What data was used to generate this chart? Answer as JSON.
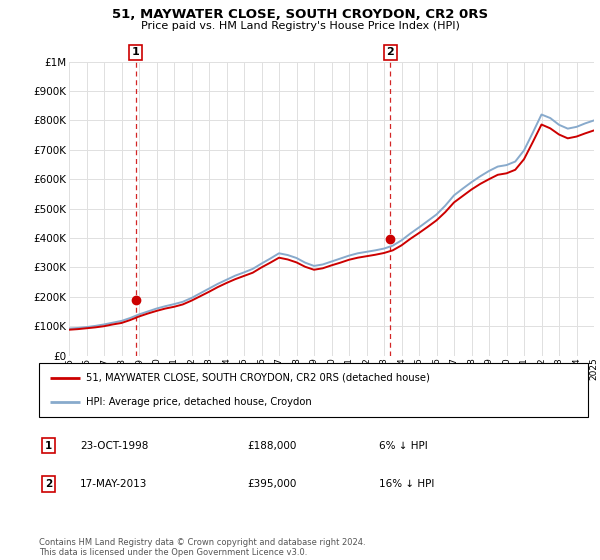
{
  "title": "51, MAYWATER CLOSE, SOUTH CROYDON, CR2 0RS",
  "subtitle": "Price paid vs. HM Land Registry's House Price Index (HPI)",
  "legend_line1": "51, MAYWATER CLOSE, SOUTH CROYDON, CR2 0RS (detached house)",
  "legend_line2": "HPI: Average price, detached house, Croydon",
  "annotation_text": "Contains HM Land Registry data © Crown copyright and database right 2024.\nThis data is licensed under the Open Government Licence v3.0.",
  "sale1_date": "23-OCT-1998",
  "sale1_price": "£188,000",
  "sale1_note": "6% ↓ HPI",
  "sale2_date": "17-MAY-2013",
  "sale2_price": "£395,000",
  "sale2_note": "16% ↓ HPI",
  "red_color": "#cc0000",
  "blue_color": "#88aacc",
  "background": "#ffffff",
  "grid_color": "#e0e0e0",
  "sale1_x": 1998.8,
  "sale1_y": 188000,
  "sale2_x": 2013.37,
  "sale2_y": 395000,
  "vline1_x": 1998.8,
  "vline2_x": 2013.37,
  "ylim": [
    0,
    1000000
  ],
  "xlim_min": 1995,
  "xlim_max": 2025
}
